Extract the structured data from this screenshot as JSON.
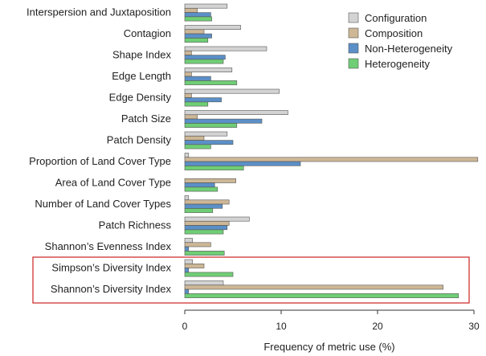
{
  "chart_data": {
    "type": "bar",
    "orientation": "horizontal",
    "categories": [
      "Interspersion and Juxtaposition",
      "Contagion",
      "Shape Index",
      "Edge Length",
      "Edge Density",
      "Patch Size",
      "Patch Density",
      "Proportion of Land Cover Type",
      "Area of Land Cover Type",
      "Number of Land Cover Types",
      "Patch Richness",
      "Shannon’s Evenness Index",
      "Simpson’s Diversity Index",
      "Shannon’s Diversity Index"
    ],
    "series": [
      {
        "name": "Configuration",
        "color": "#d3d3d3",
        "values": [
          4.4,
          5.8,
          8.5,
          4.9,
          9.8,
          10.7,
          4.4,
          0.4,
          0.0,
          0.4,
          6.7,
          0.8,
          0.8,
          4.0
        ]
      },
      {
        "name": "Composition",
        "color": "#cdb796",
        "values": [
          1.3,
          2.0,
          0.7,
          0.7,
          0.7,
          1.3,
          2.0,
          30.4,
          5.3,
          4.6,
          4.6,
          2.7,
          2.0,
          26.8
        ]
      },
      {
        "name": "Non-Heterogeneity",
        "color": "#5b8fc7",
        "values": [
          2.7,
          2.8,
          4.2,
          2.7,
          3.8,
          8.0,
          5.0,
          12.0,
          3.1,
          3.9,
          4.4,
          0.4,
          0.4,
          0.4
        ]
      },
      {
        "name": "Heterogeneity",
        "color": "#6fce75",
        "values": [
          2.8,
          2.4,
          4.0,
          5.4,
          2.4,
          5.4,
          2.7,
          6.1,
          3.4,
          2.9,
          4.0,
          4.1,
          5.0,
          28.4
        ]
      }
    ],
    "xlabel": "Frequency of metric use (%)",
    "xlim": [
      0,
      30
    ],
    "xticks": [
      0,
      10,
      20,
      30
    ],
    "grid": false,
    "legend_position": "top-right",
    "highlight": {
      "categories": [
        "Simpson’s Diversity Index",
        "Shannon’s Diversity Index"
      ],
      "color": "#cc2222"
    }
  }
}
